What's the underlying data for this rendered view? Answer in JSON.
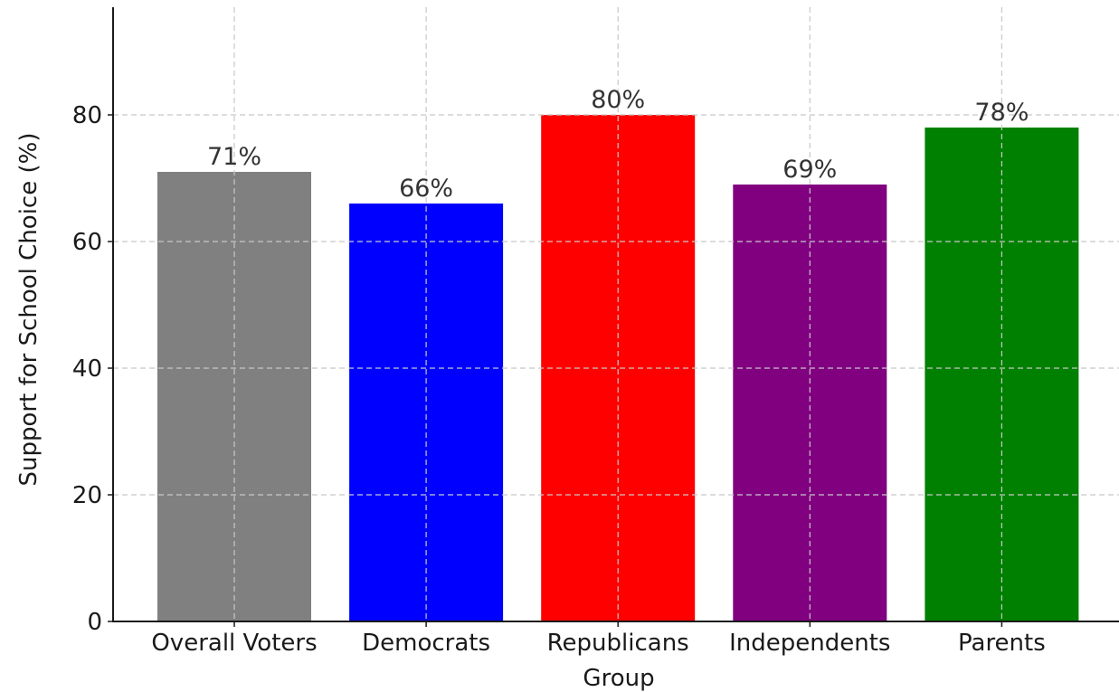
{
  "chart_data": {
    "type": "bar",
    "categories": [
      "Overall Voters",
      "Democrats",
      "Republicans",
      "Independents",
      "Parents"
    ],
    "values": [
      71,
      66,
      80,
      69,
      78
    ],
    "value_labels": [
      "71%",
      "66%",
      "80%",
      "69%",
      "78%"
    ],
    "colors": [
      "#808080",
      "#0000ff",
      "#ff0000",
      "#800080",
      "#008000"
    ],
    "title": "",
    "xlabel": "Group",
    "ylabel": "Support for School Choice (%)",
    "ylim": [
      0,
      97
    ],
    "yticks": [
      0,
      20,
      40,
      60,
      80
    ],
    "ytick_labels": [
      "0",
      "20",
      "40",
      "60",
      "80"
    ],
    "grid": true,
    "legend": "none"
  }
}
